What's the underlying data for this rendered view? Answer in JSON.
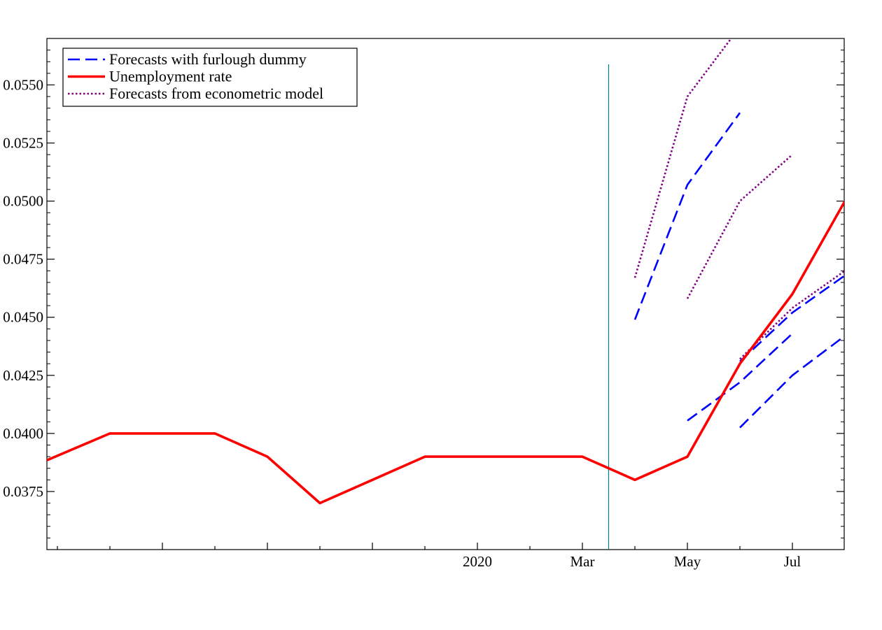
{
  "chart_data": {
    "type": "line",
    "title": "",
    "xlabel": "",
    "ylabel": "",
    "x_categories": [
      "2019-05",
      "2019-06",
      "2019-07",
      "2019-08",
      "2019-09",
      "2019-10",
      "2019-11",
      "2019-12",
      "2020-01",
      "2020-02",
      "2020-03",
      "2020-04",
      "2020-05",
      "2020-06",
      "2020-07",
      "2020-08"
    ],
    "x_tick_labels": [
      {
        "at": "2020-01",
        "label": "2020"
      },
      {
        "at": "2020-03",
        "label": "Mar"
      },
      {
        "at": "2020-05",
        "label": "May"
      },
      {
        "at": "2020-07",
        "label": "Jul"
      }
    ],
    "y_ticks": [
      0.0375,
      0.04,
      0.0425,
      0.045,
      0.0475,
      0.05,
      0.0525,
      0.055
    ],
    "y_tick_labels": [
      "0.0375",
      "0.0400",
      "0.0425",
      "0.0450",
      "0.0475",
      "0.0500",
      "0.0525",
      "0.0550"
    ],
    "ylim": [
      0.035,
      0.057
    ],
    "grid": false,
    "legend_position": "top-left",
    "legend": [
      {
        "label": "Forecasts with furlough dummy",
        "color": "#0000ff",
        "style": "dashed"
      },
      {
        "label": "Unemployment rate",
        "color": "#ff0000",
        "style": "solid"
      },
      {
        "label": "Forecasts from econometric model",
        "color": "#800080",
        "style": "dotted"
      }
    ],
    "vertical_marker": {
      "at": "2020-03-16",
      "color": "#008080"
    },
    "series": [
      {
        "name": "Unemployment rate",
        "color": "#ff0000",
        "style": "solid",
        "points": [
          [
            "2019-04-22",
            0.03875
          ],
          [
            "2019-06",
            0.04
          ],
          [
            "2019-07",
            0.04
          ],
          [
            "2019-08",
            0.04
          ],
          [
            "2019-09",
            0.039
          ],
          [
            "2019-10",
            0.037
          ],
          [
            "2019-11",
            0.038
          ],
          [
            "2019-12",
            0.039
          ],
          [
            "2020-01",
            0.039
          ],
          [
            "2020-02",
            0.039
          ],
          [
            "2020-03",
            0.039
          ],
          [
            "2020-04",
            0.038
          ],
          [
            "2020-05",
            0.039
          ],
          [
            "2020-06",
            0.043
          ],
          [
            "2020-07",
            0.046
          ],
          [
            "2020-08",
            0.05
          ]
        ]
      },
      {
        "name": "Forecasts with furlough dummy",
        "color": "#0000ff",
        "style": "dashed",
        "segments": [
          [
            [
              "2020-04",
              0.0449
            ],
            [
              "2020-05",
              0.0507
            ],
            [
              "2020-06",
              0.0538
            ]
          ],
          [
            [
              "2020-05",
              0.04055
            ],
            [
              "2020-06",
              0.0422
            ],
            [
              "2020-07",
              0.0443
            ]
          ],
          [
            [
              "2020-06",
              0.04025
            ],
            [
              "2020-07",
              0.0425
            ],
            [
              "2020-08",
              0.0442
            ]
          ],
          [
            [
              "2020-06",
              0.0431
            ],
            [
              "2020-07",
              0.0452
            ],
            [
              "2020-08",
              0.0468
            ]
          ]
        ]
      },
      {
        "name": "Forecasts from econometric model",
        "color": "#800080",
        "style": "dotted",
        "segments": [
          [
            [
              "2020-04",
              0.0467
            ],
            [
              "2020-05",
              0.0545
            ],
            [
              "2020-06",
              0.0575
            ]
          ],
          [
            [
              "2020-05",
              0.0458
            ],
            [
              "2020-06",
              0.05
            ],
            [
              "2020-07",
              0.052
            ]
          ],
          [
            [
              "2020-06",
              0.0432
            ],
            [
              "2020-07",
              0.0454
            ],
            [
              "2020-08",
              0.047
            ]
          ]
        ]
      }
    ]
  }
}
